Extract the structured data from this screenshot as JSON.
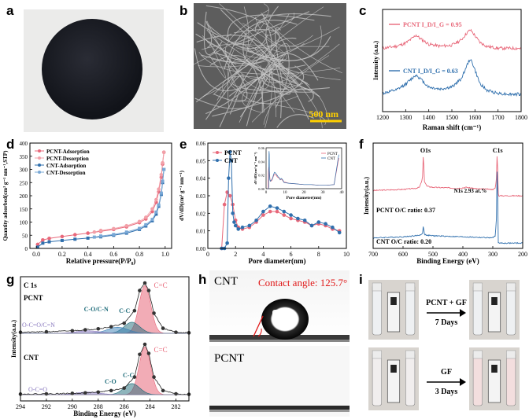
{
  "panels": {
    "a": "a",
    "b": "b",
    "c": "c",
    "d": "d",
    "e": "e",
    "f": "f",
    "g": "g",
    "h": "h",
    "i": "i"
  },
  "b_scale": "500 nm",
  "h": {
    "cnt": "CNT",
    "pcnt": "PCNT",
    "contact": "Contact angle: 125.7°"
  },
  "i": {
    "arrow1_top": "PCNT + GF",
    "arrow1_bottom": "7 Days",
    "arrow2_top": "GF",
    "arrow2_bottom": "3 Days"
  },
  "colors": {
    "pcnt": "#e8687a",
    "cnt": "#2f6fad",
    "pcnt_light": "#f2a0a8",
    "cnt_light": "#79a8d6"
  },
  "chart_data": [
    {
      "id": "c",
      "type": "line",
      "xlabel": "Raman shift (cm⁻¹)",
      "ylabel": "Intensity (a.u.)",
      "xlim": [
        1200,
        1800
      ],
      "xticks": [
        1200,
        1300,
        1400,
        1500,
        1600,
        1700,
        1800
      ],
      "series": [
        {
          "name": "PCNT  I_D/I_G = 0.95",
          "x": [
            1200,
            1260,
            1300,
            1330,
            1345,
            1360,
            1400,
            1450,
            1500,
            1540,
            1565,
            1580,
            1595,
            1620,
            1650,
            1700,
            1750,
            1800
          ],
          "y": [
            0.62,
            0.64,
            0.67,
            0.72,
            0.75,
            0.72,
            0.66,
            0.64,
            0.65,
            0.7,
            0.77,
            0.8,
            0.76,
            0.68,
            0.64,
            0.62,
            0.62,
            0.62
          ]
        },
        {
          "name": "CNT  I_D/I_G = 0.63",
          "x": [
            1200,
            1260,
            1300,
            1330,
            1345,
            1360,
            1400,
            1450,
            1500,
            1540,
            1565,
            1580,
            1595,
            1620,
            1650,
            1700,
            1750,
            1800
          ],
          "y": [
            0.18,
            0.21,
            0.27,
            0.33,
            0.36,
            0.33,
            0.24,
            0.22,
            0.24,
            0.32,
            0.45,
            0.52,
            0.44,
            0.28,
            0.21,
            0.18,
            0.17,
            0.17
          ]
        }
      ]
    },
    {
      "id": "d",
      "type": "line",
      "xlabel": "Relative pressure(P/P₀)",
      "ylabel": "Quantity adsorbed(cm³ g⁻¹ nm⁻¹,STP)",
      "xlim": [
        -0.05,
        1.05
      ],
      "ylim": [
        0,
        400
      ],
      "xticks": [
        0.0,
        0.2,
        0.4,
        0.6,
        0.8,
        1.0
      ],
      "yticks": [
        0,
        50,
        100,
        150,
        200,
        250,
        300,
        350,
        400
      ],
      "legend": "top-left",
      "series": [
        {
          "name": "PCNT-Adsorption",
          "x": [
            0.01,
            0.05,
            0.1,
            0.2,
            0.3,
            0.4,
            0.5,
            0.6,
            0.7,
            0.8,
            0.85,
            0.9,
            0.93,
            0.95,
            0.97,
            0.98,
            0.99
          ],
          "y": [
            15,
            32,
            38,
            45,
            52,
            58,
            65,
            72,
            82,
            98,
            112,
            140,
            175,
            215,
            270,
            320,
            365
          ]
        },
        {
          "name": "PCNT-Desorption",
          "x": [
            0.99,
            0.98,
            0.97,
            0.95,
            0.93,
            0.9,
            0.85,
            0.8,
            0.7,
            0.6,
            0.5,
            0.45
          ],
          "y": [
            365,
            325,
            280,
            225,
            185,
            150,
            118,
            102,
            86,
            75,
            68,
            62
          ]
        },
        {
          "name": "CNT-Adsorption",
          "x": [
            0.01,
            0.05,
            0.1,
            0.2,
            0.3,
            0.4,
            0.5,
            0.6,
            0.7,
            0.8,
            0.85,
            0.9,
            0.93,
            0.95,
            0.97,
            0.98,
            0.99
          ],
          "y": [
            5,
            20,
            25,
            30,
            35,
            39,
            44,
            50,
            58,
            72,
            85,
            105,
            130,
            160,
            205,
            250,
            300
          ]
        },
        {
          "name": "CNT-Desorption",
          "x": [
            0.99,
            0.98,
            0.97,
            0.95,
            0.93,
            0.9,
            0.85,
            0.8,
            0.7,
            0.6,
            0.5,
            0.45
          ],
          "y": [
            300,
            255,
            210,
            165,
            138,
            110,
            90,
            76,
            62,
            53,
            47,
            43
          ]
        }
      ]
    },
    {
      "id": "e",
      "type": "line",
      "xlabel": "Pore diameter(nm)",
      "ylabel": "dV/dD(cm³ g⁻¹ nm⁻¹)",
      "xlim": [
        0,
        10
      ],
      "ylim": [
        0,
        0.06
      ],
      "xticks": [
        0,
        2,
        4,
        6,
        8,
        10
      ],
      "yticks": [
        0.0,
        0.01,
        0.02,
        0.03,
        0.04,
        0.05,
        0.06
      ],
      "legend": "top-left",
      "series": [
        {
          "name": "PCNT",
          "x": [
            1.0,
            1.2,
            1.4,
            1.6,
            1.8,
            2.0,
            2.2,
            2.5,
            3.0,
            3.5,
            4.0,
            4.5,
            5.0,
            5.5,
            6.0,
            6.5,
            7.0,
            7.5,
            8.0,
            8.5,
            9.0,
            9.5
          ],
          "y": [
            0.0,
            0.025,
            0.032,
            0.03,
            0.025,
            0.016,
            0.012,
            0.011,
            0.012,
            0.015,
            0.019,
            0.021,
            0.021,
            0.019,
            0.017,
            0.016,
            0.015,
            0.013,
            0.014,
            0.013,
            0.011,
            0.01
          ]
        },
        {
          "name": "CNT",
          "x": [
            1.0,
            1.2,
            1.4,
            1.5,
            1.6,
            1.7,
            1.8,
            1.9,
            2.0,
            2.2,
            2.5,
            3.0,
            3.5,
            4.0,
            4.5,
            5.0,
            5.5,
            6.0,
            6.5,
            7.0,
            7.5,
            8.0,
            8.5,
            9.0,
            9.5
          ],
          "y": [
            0.0,
            0.0,
            0.003,
            0.04,
            0.055,
            0.05,
            0.02,
            0.015,
            0.013,
            0.011,
            0.012,
            0.013,
            0.016,
            0.021,
            0.024,
            0.023,
            0.021,
            0.019,
            0.017,
            0.016,
            0.013,
            0.015,
            0.014,
            0.012,
            0.009
          ]
        }
      ],
      "inset": {
        "xlabel": "Pore diameter(nm)",
        "ylabel": "dV/dD(cm³ g⁻¹ nm⁻¹)",
        "xlim": [
          0,
          40
        ],
        "xticks": [
          0,
          10,
          20,
          30,
          40
        ],
        "yticks": [
          0.0,
          0.02,
          0.04,
          0.06
        ],
        "series_names": [
          "PCNT",
          "CNT"
        ]
      }
    },
    {
      "id": "f",
      "type": "line",
      "xlabel": "Binding Energy (eV)",
      "ylabel": "Intensity(a.u.)",
      "xlim": [
        700,
        200
      ],
      "xticks": [
        700,
        600,
        500,
        400,
        300,
        200
      ],
      "annotations": [
        "O1s",
        "C1s",
        "N1s  2.93 at.%",
        "PCNT   O/C ratio: 0.37",
        "CNT   O/C ratio: 0.20"
      ],
      "series": [
        {
          "name": "PCNT",
          "x": [
            700,
            600,
            560,
            545,
            535,
            532,
            529,
            520,
            500,
            450,
            420,
            400,
            390,
            350,
            300,
            292,
            288,
            285,
            282,
            280,
            250,
            200
          ],
          "y": [
            0.55,
            0.56,
            0.57,
            0.58,
            0.66,
            0.92,
            0.64,
            0.59,
            0.58,
            0.575,
            0.57,
            0.575,
            0.58,
            0.565,
            0.56,
            0.57,
            0.65,
            0.95,
            0.52,
            0.5,
            0.5,
            0.5
          ]
        },
        {
          "name": "CNT",
          "x": [
            700,
            600,
            560,
            545,
            535,
            532,
            529,
            520,
            500,
            450,
            400,
            350,
            300,
            292,
            288,
            285,
            282,
            280,
            250,
            200
          ],
          "y": [
            0.1,
            0.11,
            0.12,
            0.125,
            0.14,
            0.22,
            0.135,
            0.125,
            0.12,
            0.115,
            0.11,
            0.105,
            0.1,
            0.12,
            0.25,
            0.9,
            0.06,
            0.05,
            0.05,
            0.05
          ]
        }
      ]
    },
    {
      "id": "g",
      "type": "area",
      "xlabel": "Binding Energy (eV)",
      "ylabel": "Intensity(a.u.)",
      "xlim": [
        294,
        281
      ],
      "xticks": [
        294,
        292,
        290,
        288,
        286,
        284,
        282
      ],
      "annotations": [
        "C 1s",
        "PCNT",
        "CNT",
        "C=C",
        "C-C",
        "C-O/C-N",
        "O-C=O/C=N",
        "C=C",
        "C-C",
        "C-O",
        "O-C=O"
      ],
      "series": [
        {
          "name": "PCNT",
          "x": [
            294,
            292,
            290,
            289,
            288,
            287,
            286,
            285.2,
            284.8,
            284.4,
            284.1,
            283.7,
            283,
            282,
            281
          ],
          "y": [
            0.02,
            0.03,
            0.05,
            0.07,
            0.09,
            0.13,
            0.2,
            0.45,
            0.85,
            1.0,
            0.85,
            0.4,
            0.1,
            0.02,
            0.01
          ]
        },
        {
          "name": "CNT",
          "x": [
            294,
            292,
            290,
            289,
            288,
            287,
            286,
            285.2,
            284.8,
            284.4,
            284.1,
            283.7,
            283,
            282,
            281
          ],
          "y": [
            0.01,
            0.015,
            0.025,
            0.035,
            0.05,
            0.08,
            0.13,
            0.35,
            0.8,
            1.0,
            0.82,
            0.35,
            0.08,
            0.015,
            0.005
          ]
        }
      ]
    }
  ]
}
